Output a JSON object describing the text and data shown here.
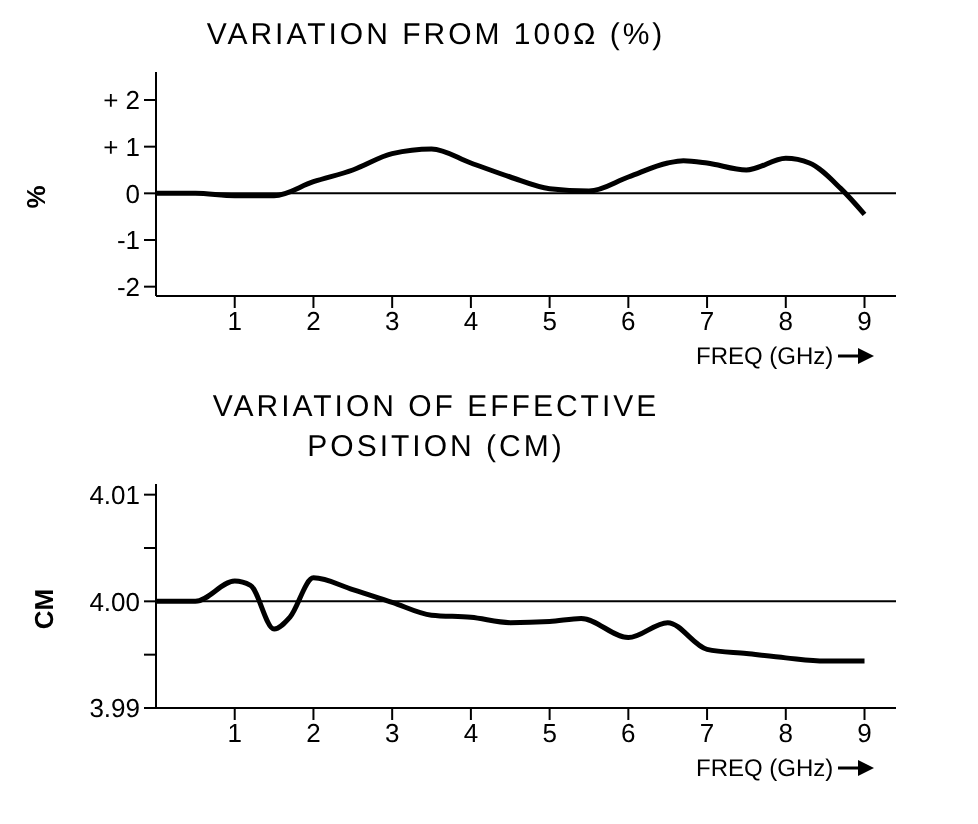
{
  "chart_data": [
    {
      "type": "line",
      "title": "VARIATION FROM 100Ω (%)",
      "ylabel": "%",
      "xlabel": "FREQ (GHz)",
      "x": [
        0,
        0.5,
        1,
        1.5,
        2,
        2.5,
        3,
        3.5,
        4,
        4.5,
        5,
        5.5,
        6,
        6.5,
        6.7,
        7,
        7.5,
        8,
        8.3,
        8.7,
        9
      ],
      "series": [
        {
          "color": "#000000",
          "values": [
            0,
            0,
            -0.05,
            -0.05,
            0.25,
            0.5,
            0.85,
            0.95,
            0.65,
            0.35,
            0.1,
            0.05,
            0.35,
            0.65,
            0.7,
            0.65,
            0.5,
            0.75,
            0.65,
            0.1,
            -0.45
          ]
        }
      ],
      "xlim": [
        0,
        9.4
      ],
      "xticks": [
        1,
        2,
        3,
        4,
        5,
        6,
        7,
        8,
        9
      ],
      "ylim": [
        -2.2,
        2.6
      ],
      "yticks": [
        {
          "value": 2,
          "label": "+ 2"
        },
        {
          "value": 1,
          "label": "+ 1"
        },
        0,
        -1,
        -2
      ],
      "ref_lines": [
        {
          "axis": "y",
          "value": 0
        }
      ],
      "grid": false,
      "marker": "none",
      "line_style": "solid"
    },
    {
      "type": "line",
      "title": "VARIATION OF EFFECTIVE POSITION (CM)",
      "ylabel": "CM",
      "xlabel": "FREQ (GHz)",
      "x": [
        0,
        0.5,
        1,
        1.2,
        1.5,
        1.7,
        2,
        2.5,
        3,
        3.5,
        4,
        4.5,
        5,
        5.4,
        6,
        6.5,
        7,
        7.5,
        8,
        8.5,
        9
      ],
      "series": [
        {
          "color": "#000000",
          "values": [
            4.0,
            4.0,
            4.0019,
            4.0015,
            3.9974,
            3.9985,
            4.0022,
            4.0011,
            3.9999,
            3.9987,
            3.9985,
            3.998,
            3.9981,
            3.9984,
            3.9966,
            3.998,
            3.9955,
            3.9951,
            3.9947,
            3.9944,
            3.9944
          ]
        }
      ],
      "xlim": [
        0,
        9.4
      ],
      "xticks": [
        1,
        2,
        3,
        4,
        5,
        6,
        7,
        8,
        9
      ],
      "ylim": [
        3.99,
        4.011
      ],
      "yticks": [
        {
          "value": 4.01,
          "label": "4.01"
        },
        {
          "value": 4.005,
          "label": null
        },
        {
          "value": 4,
          "label": "4.00"
        },
        {
          "value": 3.995,
          "label": null
        },
        {
          "value": 3.99,
          "label": "3.99"
        }
      ],
      "ref_lines": [
        {
          "axis": "y",
          "value": 4.0
        }
      ],
      "grid": false,
      "marker": "none",
      "line_style": "solid"
    }
  ]
}
